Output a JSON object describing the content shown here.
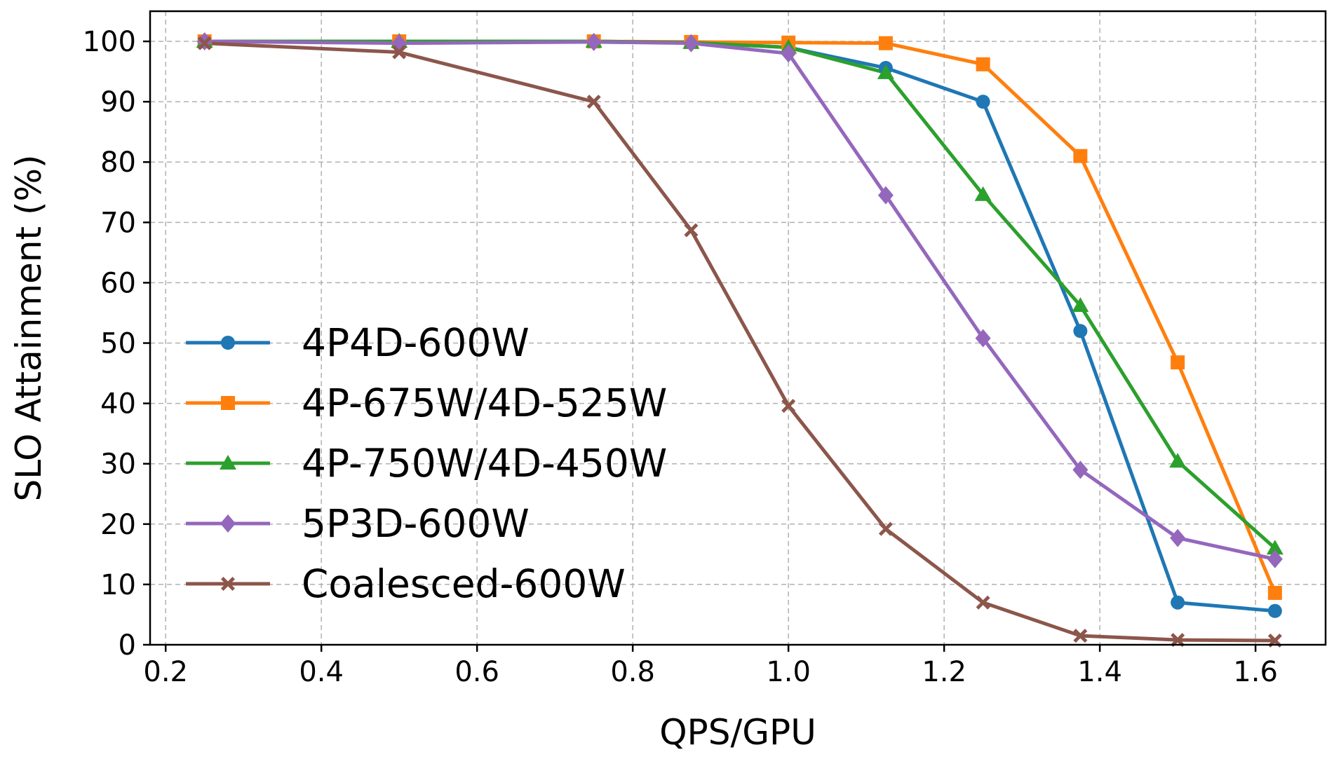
{
  "chart_data": {
    "type": "line",
    "title": "",
    "xlabel": "QPS/GPU",
    "ylabel": "SLO Attainment (%)",
    "xlim": [
      0.18,
      1.69
    ],
    "ylim": [
      0,
      105
    ],
    "xticks": [
      0.2,
      0.4,
      0.6,
      0.8,
      1.0,
      1.2,
      1.4,
      1.6
    ],
    "xtick_labels": [
      "0.2",
      "0.4",
      "0.6",
      "0.8",
      "1.0",
      "1.2",
      "1.4",
      "1.6"
    ],
    "yticks": [
      0,
      10,
      20,
      30,
      40,
      50,
      60,
      70,
      80,
      90,
      100
    ],
    "ytick_labels": [
      "0",
      "10",
      "20",
      "30",
      "40",
      "50",
      "60",
      "70",
      "80",
      "90",
      "100"
    ],
    "grid": true,
    "legend_position": "left",
    "x": [
      0.25,
      0.5,
      0.75,
      0.875,
      1.0,
      1.125,
      1.25,
      1.375,
      1.5,
      1.625
    ],
    "series": [
      {
        "name": "4P4D-600W",
        "color": "#1f77b4",
        "marker": "circle",
        "values": [
          100,
          100,
          100,
          99.8,
          99,
          95.6,
          90,
          52,
          7,
          5.6
        ]
      },
      {
        "name": "4P-675W/4D-525W",
        "color": "#ff7f0e",
        "marker": "square",
        "values": [
          100,
          100,
          100,
          99.9,
          99.8,
          99.7,
          96.2,
          81,
          46.8,
          8.6
        ]
      },
      {
        "name": "4P-750W/4D-450W",
        "color": "#2ca02c",
        "marker": "triangle",
        "values": [
          100,
          100,
          100,
          99.8,
          99,
          94.8,
          74.6,
          56.2,
          30.4,
          16
        ]
      },
      {
        "name": "5P3D-600W",
        "color": "#9467bd",
        "marker": "diamond",
        "values": [
          100,
          99.7,
          99.9,
          99.7,
          98,
          74.5,
          50.8,
          29,
          17.7,
          14.2
        ]
      },
      {
        "name": "Coalesced-600W",
        "color": "#8c564b",
        "marker": "x",
        "values": [
          99.7,
          98.2,
          90,
          68.7,
          39.6,
          19.2,
          7,
          1.5,
          0.8,
          0.7
        ]
      }
    ]
  }
}
